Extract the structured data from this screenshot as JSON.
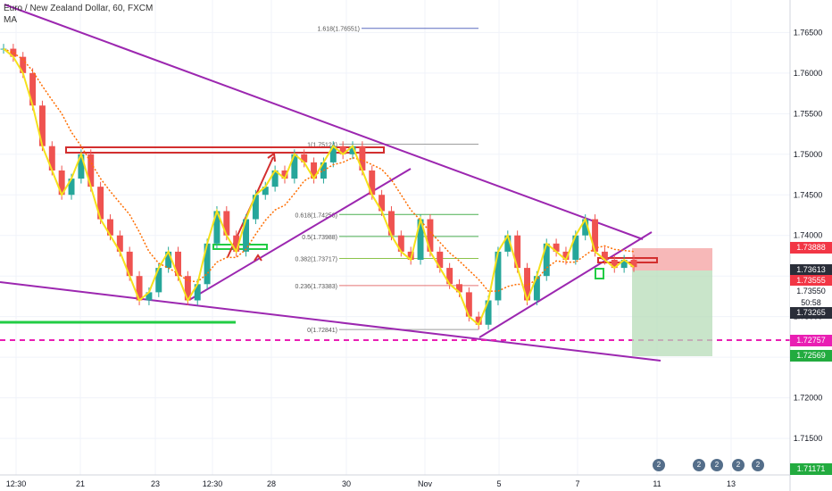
{
  "header": {
    "symbol": "Euro / New Zealand Dollar, 60, FXCM",
    "indicator": "MA"
  },
  "chart_data": {
    "type": "candlestick",
    "x_ticks": [
      "12:30",
      "21",
      "23",
      "12:30",
      "28",
      "30",
      "Nov",
      "5",
      "7",
      "11",
      "13"
    ],
    "y_ticks": [
      "1.76500",
      "1.76000",
      "1.75500",
      "1.75000",
      "1.74500",
      "1.74000",
      "1.73500",
      "1.73000",
      "1.72500",
      "1.72000",
      "1.71500"
    ],
    "ylim": [
      1.7105,
      1.769
    ],
    "fibonacci": [
      {
        "label": "1.618(1.76551)",
        "price": 1.76551
      },
      {
        "label": "1(1.75124)",
        "price": 1.75124
      },
      {
        "label": "0.618(1.74258)",
        "price": 1.74258
      },
      {
        "label": "0.5(1.73988)",
        "price": 1.73988
      },
      {
        "label": "0.382(1.73717)",
        "price": 1.73717
      },
      {
        "label": "0.236(1.73383)",
        "price": 1.73383
      },
      {
        "label": "0(1.72841)",
        "price": 1.72841
      }
    ],
    "price_tags": [
      {
        "label": "1.73888",
        "color": "#f23645"
      },
      {
        "label": "1.73613",
        "color": "#2a2e39"
      },
      {
        "label": "1.73555",
        "color": "#f23645"
      },
      {
        "label": "1.73550",
        "color": "#ffffff"
      },
      {
        "label": "50:58",
        "color": "#ffffff"
      },
      {
        "label": "1.73265",
        "color": "#2a2e39"
      },
      {
        "label": "1.72757",
        "color": "#e91eb3"
      },
      {
        "label": "1.72569",
        "color": "#22ab3f"
      },
      {
        "label": "1.71171",
        "color": "#22ab3f"
      }
    ],
    "close_series": [
      1.763,
      1.762,
      1.76,
      1.756,
      1.751,
      1.748,
      1.745,
      1.747,
      1.75,
      1.746,
      1.742,
      1.74,
      1.738,
      1.735,
      1.732,
      1.733,
      1.736,
      1.738,
      1.735,
      1.732,
      1.734,
      1.739,
      1.743,
      1.74,
      1.738,
      1.742,
      1.745,
      1.746,
      1.748,
      1.747,
      1.75,
      1.749,
      1.747,
      1.749,
      1.751,
      1.75,
      1.751,
      1.748,
      1.745,
      1.743,
      1.74,
      1.738,
      1.737,
      1.742,
      1.738,
      1.736,
      1.734,
      1.733,
      1.73,
      1.729,
      1.732,
      1.738,
      1.74,
      1.736,
      1.732,
      1.735,
      1.739,
      1.738,
      1.737,
      1.74,
      1.742,
      1.738,
      1.737,
      1.736,
      1.737,
      1.7361
    ]
  },
  "event_icons": [
    "2",
    "2",
    "2",
    "2",
    "2"
  ]
}
